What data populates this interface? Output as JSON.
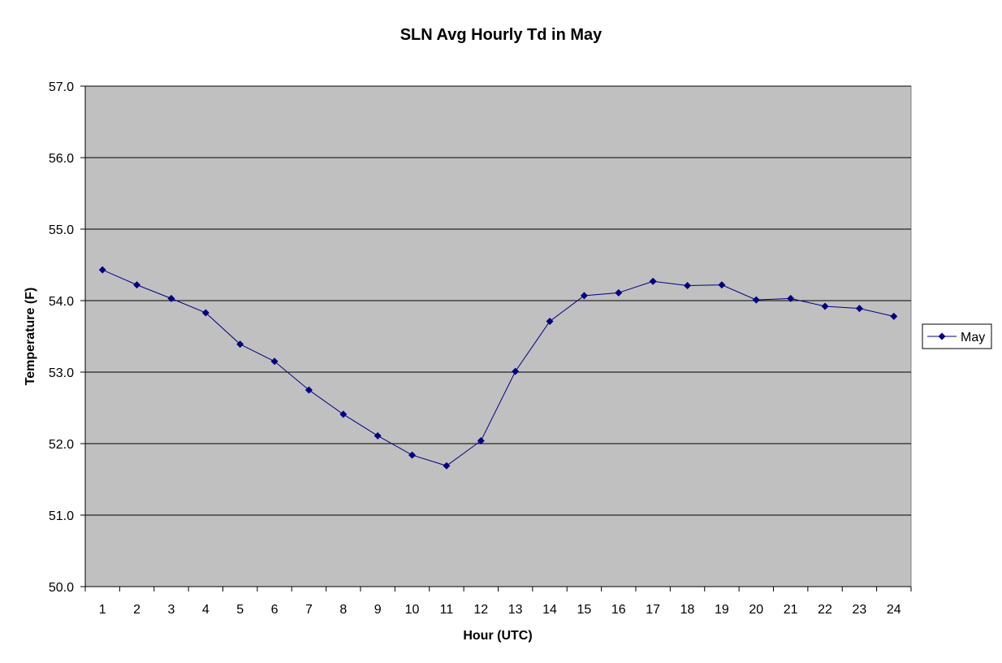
{
  "chart_data": {
    "type": "line",
    "title": "SLN Avg Hourly Td in May",
    "xlabel": "Hour (UTC)",
    "ylabel": "Temperature (F)",
    "categories": [
      "1",
      "2",
      "3",
      "4",
      "5",
      "6",
      "7",
      "8",
      "9",
      "10",
      "11",
      "12",
      "13",
      "14",
      "15",
      "16",
      "17",
      "18",
      "19",
      "20",
      "21",
      "22",
      "23",
      "24"
    ],
    "series": [
      {
        "name": "May",
        "values": [
          54.43,
          54.22,
          54.03,
          53.83,
          53.39,
          53.15,
          52.75,
          52.41,
          52.11,
          51.84,
          51.69,
          52.04,
          53.01,
          53.71,
          54.07,
          54.11,
          54.27,
          54.21,
          54.22,
          54.01,
          54.03,
          53.92,
          53.89,
          53.78
        ]
      }
    ],
    "ylim": [
      50.0,
      57.0
    ],
    "ytick_step": 1.0,
    "ytick_labels": [
      "50.0",
      "51.0",
      "52.0",
      "53.0",
      "54.0",
      "55.0",
      "56.0",
      "57.0"
    ],
    "grid": true,
    "legend_position": "right",
    "colors": {
      "series": "#000080",
      "plot_background": "#c0c0c0",
      "gridline": "#000000"
    }
  }
}
